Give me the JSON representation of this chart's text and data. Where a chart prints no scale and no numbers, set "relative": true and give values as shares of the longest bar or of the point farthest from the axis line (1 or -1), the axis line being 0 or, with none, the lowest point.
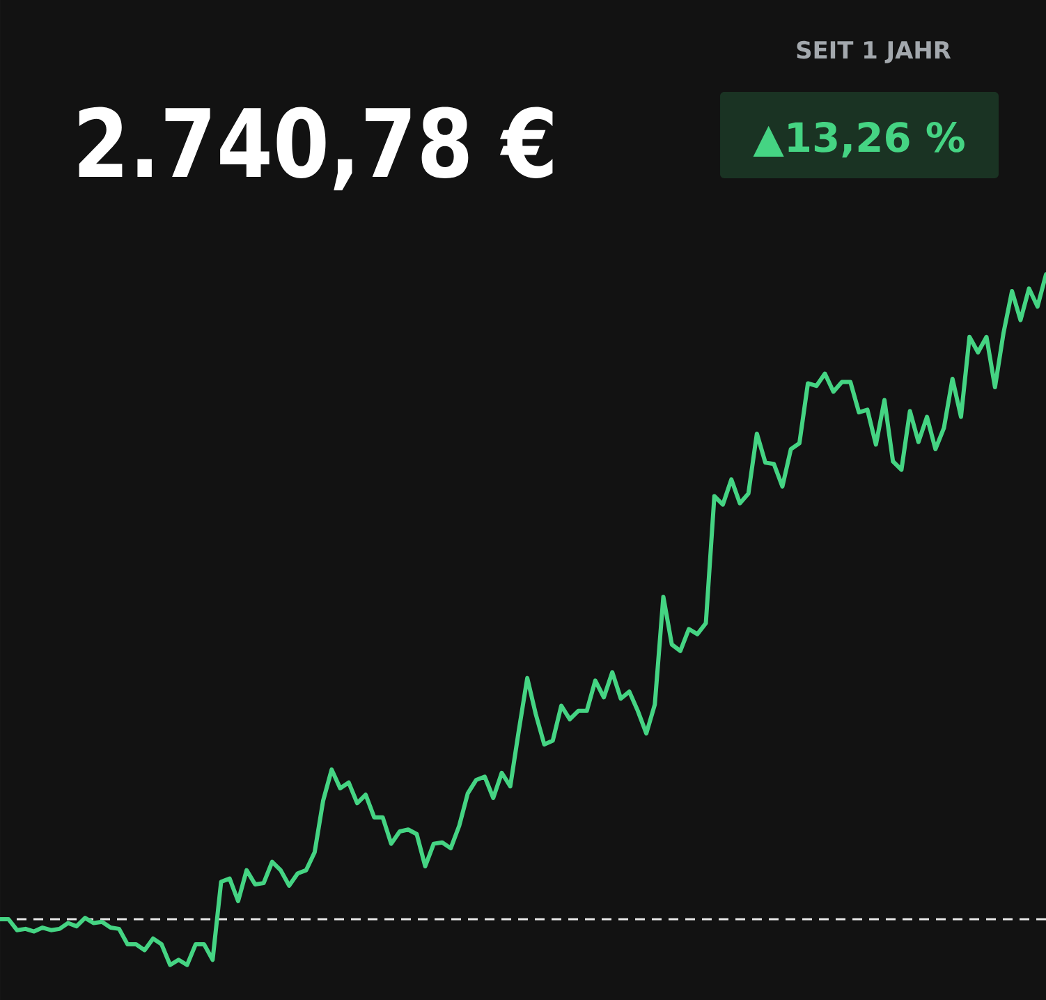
{
  "chart_data": {
    "type": "line",
    "title": "2.740,78 €",
    "relative": true,
    "annotations": [
      "SEIT 1 JAHR",
      "▲13,26 %"
    ],
    "categories": [
      null,
      null,
      null,
      null,
      null,
      null,
      null,
      null,
      null,
      null,
      null,
      null,
      null,
      null,
      null,
      null,
      null,
      null,
      null,
      null,
      null,
      null,
      null,
      null,
      null,
      null,
      null,
      null,
      null,
      null,
      null,
      null,
      null,
      null,
      null,
      null,
      null,
      null,
      null,
      null,
      null,
      null,
      null,
      null,
      null,
      null,
      null,
      null,
      null,
      null,
      null,
      null,
      null,
      null,
      null,
      null,
      null,
      null,
      null,
      null,
      null,
      null,
      null,
      null,
      null,
      null,
      null,
      null,
      null,
      null,
      null,
      null,
      null,
      null,
      null,
      null,
      null,
      null,
      null,
      null,
      null,
      null,
      null,
      null,
      null,
      null,
      null,
      null,
      null,
      null,
      null,
      null,
      null,
      null,
      null,
      null,
      null,
      null,
      null,
      null,
      null,
      null,
      null,
      null,
      null,
      null,
      null,
      null,
      null,
      null,
      null,
      null,
      null,
      null,
      null,
      null,
      null,
      null,
      null,
      null,
      null,
      null,
      null,
      null
    ],
    "series": [
      {
        "color": "#45d483",
        "values": [
          0,
          0,
          -0.017,
          -0.015,
          -0.019,
          -0.013,
          -0.017,
          -0.015,
          -0.006,
          -0.011,
          0.002,
          -0.006,
          -0.004,
          -0.013,
          -0.015,
          -0.039,
          -0.039,
          -0.048,
          -0.03,
          -0.039,
          -0.071,
          -0.063,
          -0.071,
          -0.039,
          -0.039,
          -0.063,
          0.058,
          0.063,
          0.028,
          0.076,
          0.054,
          0.056,
          0.089,
          0.076,
          0.052,
          0.071,
          0.076,
          0.104,
          0.184,
          0.232,
          0.203,
          0.212,
          0.18,
          0.193,
          0.158,
          0.158,
          0.117,
          0.136,
          0.139,
          0.132,
          0.082,
          0.117,
          0.119,
          0.11,
          0.145,
          0.195,
          0.216,
          0.221,
          0.188,
          0.227,
          0.206,
          0.292,
          0.374,
          0.318,
          0.271,
          0.277,
          0.331,
          0.31,
          0.323,
          0.323,
          0.37,
          0.344,
          0.383,
          0.342,
          0.353,
          0.323,
          0.288,
          0.333,
          0.5,
          0.426,
          0.416,
          0.45,
          0.442,
          0.459,
          0.656,
          0.643,
          0.682,
          0.645,
          0.66,
          0.753,
          0.708,
          0.706,
          0.671,
          0.729,
          0.738,
          0.831,
          0.827,
          0.846,
          0.818,
          0.833,
          0.833,
          0.786,
          0.79,
          0.736,
          0.805,
          0.71,
          0.697,
          0.788,
          0.74,
          0.779,
          0.729,
          0.762,
          0.838,
          0.779,
          0.903,
          0.879,
          0.903,
          0.825,
          0.909,
          0.974,
          0.929,
          0.978,
          0.95,
          1
        ]
      }
    ],
    "ref_lines": [
      {
        "axis": "y",
        "value": 0,
        "color": "#e6e6e6",
        "line_style": "dashed"
      }
    ]
  }
}
